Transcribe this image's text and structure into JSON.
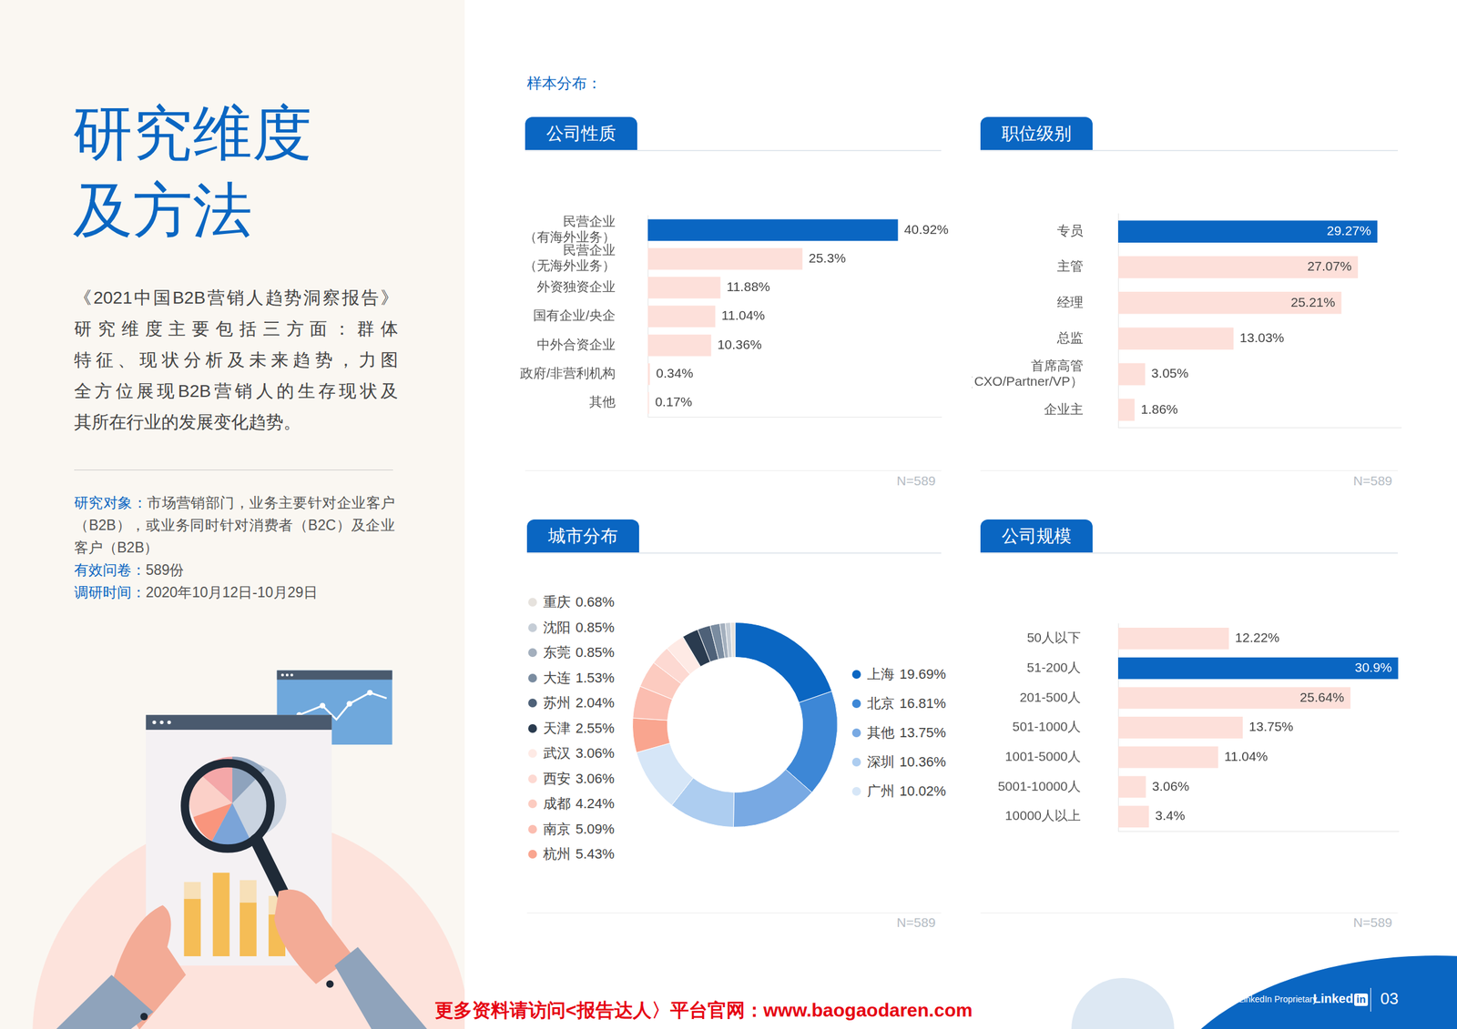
{
  "page": {
    "title": [
      "研究维度",
      "及方法"
    ],
    "intro_lines": [
      "《2021中国B2B营销人趋势洞察报告》",
      "研究维度主要包括三方面：群体",
      "特征、现状分析及未来趋势，力图",
      "全方位展现B2B营销人的生存现状及",
      "其所在行业的发展变化趋势。"
    ],
    "details": [
      {
        "label": "研究对象：",
        "text": "市场营销部门，业务主要针对企业客户（B2B），或业务同时针对消费者（B2C）及企业客户（B2B）"
      },
      {
        "label": "有效问卷：",
        "text": "589份"
      },
      {
        "label": "调研时间：",
        "text": "2020年10月12日-10月29日"
      }
    ],
    "section_label": "样本分布：",
    "footer": {
      "promo": "更多资料请访问<报告达人〉平台官网：www.baogaodaren.com",
      "proprietary": "领英专有 LinkedIn Proprietary",
      "brand": "Linked",
      "brand_badge": "in",
      "page_number": "03"
    }
  },
  "chart_data": [
    {
      "type": "bar",
      "title": "公司性质",
      "orientation": "horizontal",
      "categories": [
        "民营企业\n（有海外业务）",
        "民营企业\n（无海外业务）",
        "外资独资企业",
        "国有企业/央企",
        "中外合资企业",
        "政府/非营利机构",
        "其他"
      ],
      "values": [
        40.92,
        25.3,
        11.88,
        11.04,
        10.36,
        0.34,
        0.17
      ],
      "value_labels": [
        "40.92%",
        "25.3%",
        "11.88%",
        "11.04%",
        "10.36%",
        "0.34%",
        "0.17%"
      ],
      "colors": [
        "#0a66c2",
        "#fde0da",
        "#fde0da",
        "#fde0da",
        "#fde0da",
        "#fde0da",
        "#fde0da"
      ],
      "xlim": [
        0,
        48
      ],
      "grid": false,
      "data_labels": true,
      "tick_labels": "y",
      "annotation": "N=589"
    },
    {
      "type": "bar",
      "title": "职位级别",
      "orientation": "horizontal",
      "categories": [
        "专员",
        "主管",
        "经理",
        "总监",
        "首席高管\n（CXO/Partner/VP）",
        "企业主"
      ],
      "values": [
        29.27,
        27.07,
        25.21,
        13.03,
        3.05,
        1.86
      ],
      "value_labels": [
        "29.27%",
        "27.07%",
        "25.21%",
        "13.03%",
        "3.05%",
        "1.86%"
      ],
      "colors": [
        "#0a66c2",
        "#fde0da",
        "#fde0da",
        "#fde0da",
        "#fde0da",
        "#fde0da"
      ],
      "xlim": [
        0,
        32
      ],
      "grid": false,
      "data_labels": true,
      "tick_labels": "y",
      "annotation": "N=589"
    },
    {
      "type": "doughnut",
      "title": "城市分布",
      "categories": [
        "上海",
        "北京",
        "其他",
        "深圳",
        "广州",
        "杭州",
        "南京",
        "成都",
        "西安",
        "武汉",
        "天津",
        "苏州",
        "大连",
        "东莞",
        "沈阳",
        "重庆"
      ],
      "values": [
        19.69,
        16.81,
        13.75,
        10.36,
        10.02,
        5.43,
        5.09,
        4.24,
        3.06,
        3.06,
        2.55,
        2.04,
        1.53,
        0.85,
        0.85,
        0.68
      ],
      "value_labels": [
        "19.69%",
        "16.81%",
        "13.75%",
        "10.36%",
        "10.02%",
        "5.43%",
        "5.09%",
        "4.24%",
        "3.06%",
        "3.06%",
        "2.55%",
        "2.04%",
        "1.53%",
        "0.85%",
        "0.85%",
        "0.68%"
      ],
      "colors": [
        "#0a66c2",
        "#3d87d6",
        "#78a9e3",
        "#adcdf0",
        "#d6e6f7",
        "#f9a58f",
        "#fbbdb0",
        "#fccbc0",
        "#fdd9d2",
        "#feeae5",
        "#2a3b4f",
        "#4e6178",
        "#7a8ca0",
        "#a3afbd",
        "#c5cdd6",
        "#e6e2dd"
      ],
      "legend": "right",
      "annotation": "N=589"
    },
    {
      "type": "bar",
      "title": "公司规模",
      "orientation": "horizontal",
      "categories": [
        "50人以下",
        "51-200人",
        "201-500人",
        "501-1000人",
        "1001-5000人",
        "5001-10000人",
        "10000人以上"
      ],
      "values": [
        12.22,
        30.9,
        25.64,
        13.75,
        11.04,
        3.06,
        3.4
      ],
      "value_labels": [
        "12.22%",
        "30.9%",
        "25.64%",
        "13.75%",
        "11.04%",
        "3.06%",
        "3.4%"
      ],
      "colors": [
        "#fde0da",
        "#0a66c2",
        "#fde0da",
        "#fde0da",
        "#fde0da",
        "#fde0da",
        "#fde0da"
      ],
      "xlim": [
        0,
        31
      ],
      "grid": false,
      "data_labels": true,
      "tick_labels": "y",
      "annotation": "N=589"
    }
  ]
}
